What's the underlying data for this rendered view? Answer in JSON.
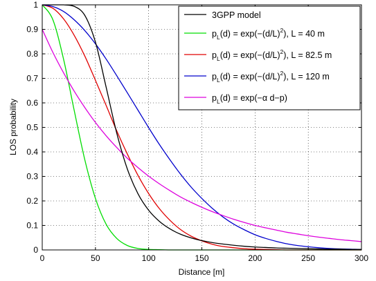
{
  "chart_data": {
    "type": "line",
    "xlabel": "Distance [m]",
    "ylabel": "LOS probability",
    "xlim": [
      0,
      300
    ],
    "ylim": [
      0,
      1
    ],
    "xticks": [
      0,
      50,
      100,
      150,
      200,
      250,
      300
    ],
    "yticks": [
      0,
      0.1,
      0.2,
      0.3,
      0.4,
      0.5,
      0.6,
      0.7,
      0.8,
      0.9,
      1
    ],
    "xtick_labels": [
      "0",
      "50",
      "100",
      "150",
      "200",
      "250",
      "300"
    ],
    "ytick_labels": [
      "0",
      "0.1",
      "0.2",
      "0.3",
      "0.4",
      "0.5",
      "0.6",
      "0.7",
      "0.8",
      "0.9",
      "1"
    ],
    "grid": true,
    "legend_position": "top-right",
    "x": [
      0,
      10,
      20,
      30,
      40,
      50,
      60,
      70,
      80,
      90,
      100,
      110,
      120,
      130,
      140,
      150,
      160,
      170,
      180,
      190,
      200,
      210,
      220,
      230,
      240,
      250,
      260,
      270,
      280,
      290,
      300
    ],
    "series": [
      {
        "name": "3GPP model",
        "color": "#000000",
        "values": [
          1.0,
          1.0,
          1.0,
          0.994,
          0.957,
          0.848,
          0.665,
          0.477,
          0.33,
          0.229,
          0.162,
          0.117,
          0.086,
          0.064,
          0.049,
          0.038,
          0.03,
          0.024,
          0.019,
          0.015,
          0.012,
          0.01,
          0.008,
          0.007,
          0.006,
          0.005,
          0.004,
          0.003,
          0.003,
          0.002,
          0.002
        ]
      },
      {
        "name": "p_L(d) = exp(−(d/L)^2), L = 40 m",
        "color": "#00dd00",
        "values": [
          1.0,
          0.939,
          0.779,
          0.57,
          0.368,
          0.21,
          0.105,
          0.047,
          0.018,
          0.006,
          0.002,
          0.001,
          0.0,
          0.0,
          0.0,
          0.0,
          0.0,
          0.0,
          0.0,
          0.0,
          0.0,
          0.0,
          0.0,
          0.0,
          0.0,
          0.0,
          0.0,
          0.0,
          0.0,
          0.0,
          0.0
        ]
      },
      {
        "name": "p_L(d) = exp(−(d/L)^2), L = 82.5 m",
        "color": "#e00000",
        "values": [
          1.0,
          0.986,
          0.943,
          0.876,
          0.791,
          0.692,
          0.59,
          0.486,
          0.391,
          0.304,
          0.23,
          0.169,
          0.121,
          0.083,
          0.056,
          0.037,
          0.023,
          0.014,
          0.009,
          0.005,
          0.003,
          0.002,
          0.001,
          0.0,
          0.0,
          0.0,
          0.0,
          0.0,
          0.0,
          0.0,
          0.0
        ]
      },
      {
        "name": "p_L(d) = exp(−(d/L)^2), L = 120 m",
        "color": "#0000cc",
        "values": [
          1.0,
          0.993,
          0.973,
          0.939,
          0.895,
          0.841,
          0.779,
          0.711,
          0.641,
          0.57,
          0.499,
          0.431,
          0.368,
          0.309,
          0.256,
          0.21,
          0.169,
          0.134,
          0.105,
          0.082,
          0.062,
          0.047,
          0.035,
          0.025,
          0.018,
          0.013,
          0.009,
          0.006,
          0.004,
          0.003,
          0.002
        ]
      },
      {
        "name": "p_L(d) = exp(−α d−p)",
        "color": "#dd00dd",
        "values": [
          0.9,
          0.806,
          0.723,
          0.648,
          0.581,
          0.52,
          0.466,
          0.418,
          0.374,
          0.336,
          0.301,
          0.27,
          0.242,
          0.216,
          0.194,
          0.174,
          0.156,
          0.14,
          0.125,
          0.112,
          0.1,
          0.09,
          0.081,
          0.072,
          0.065,
          0.058,
          0.052,
          0.047,
          0.042,
          0.038,
          0.034
        ]
      }
    ],
    "legend": [
      {
        "type": "plain",
        "text": "3GPP model"
      },
      {
        "type": "gauss",
        "base": "p",
        "sub": "L",
        "mid": "(d) = exp(−(d/L)",
        "sup": "2",
        "tail": "), L = 40 m"
      },
      {
        "type": "gauss",
        "base": "p",
        "sub": "L",
        "mid": "(d) = exp(−(d/L)",
        "sup": "2",
        "tail": "), L = 82.5 m"
      },
      {
        "type": "gauss",
        "base": "p",
        "sub": "L",
        "mid": "(d) = exp(−(d/L)",
        "sup": "2",
        "tail": "), L = 120 m"
      },
      {
        "type": "exp",
        "base": "p",
        "sub": "L",
        "mid": "(d) = exp(−α d−p)"
      }
    ]
  }
}
